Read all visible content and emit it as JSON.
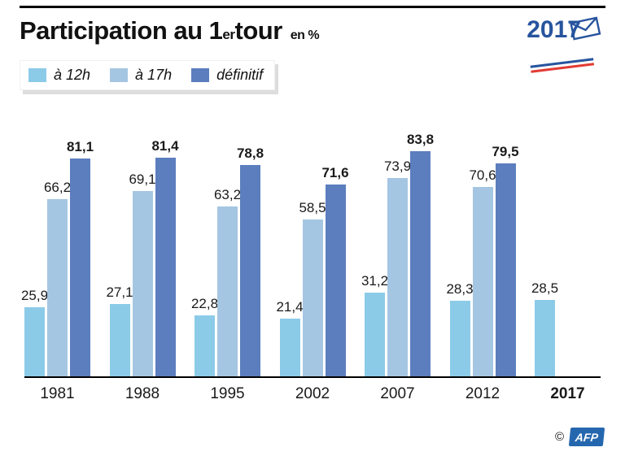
{
  "header": {
    "title_main": "Participation au 1",
    "title_sup": "er",
    "title_rest": " tour",
    "unit": "en %",
    "logo_text": "2017",
    "logo_blue": "#27549E",
    "logo_red": "#E23B33"
  },
  "legend": {
    "items": [
      {
        "label": "à 12h",
        "color": "#8CCBE8"
      },
      {
        "label": "à 17h",
        "color": "#A5C6E2"
      },
      {
        "label": "définitif",
        "color": "#5C7EBE"
      }
    ]
  },
  "chart_data": {
    "type": "bar",
    "title": "Participation au 1er tour (en %)",
    "categories": [
      "1981",
      "1988",
      "1995",
      "2002",
      "2007",
      "2012",
      "2017"
    ],
    "series": [
      {
        "name": "à 12h",
        "color": "#8CCBE8",
        "bold_labels": false,
        "values": [
          25.9,
          27.1,
          22.8,
          21.4,
          31.2,
          28.3,
          28.5
        ]
      },
      {
        "name": "à 17h",
        "color": "#A5C6E2",
        "bold_labels": false,
        "values": [
          66.2,
          69.1,
          63.2,
          58.5,
          73.9,
          70.6,
          null
        ]
      },
      {
        "name": "définitif",
        "color": "#5C7EBE",
        "bold_labels": true,
        "values": [
          81.1,
          81.4,
          78.8,
          71.6,
          83.8,
          79.5,
          null
        ]
      }
    ],
    "ylim": [
      0,
      90
    ],
    "value_labels": true,
    "decimal": "comma",
    "grid": false,
    "legend_position": "top-left"
  },
  "footer": {
    "copyright": "©",
    "afp": "AFP",
    "afp_blue": "#2567AF"
  }
}
